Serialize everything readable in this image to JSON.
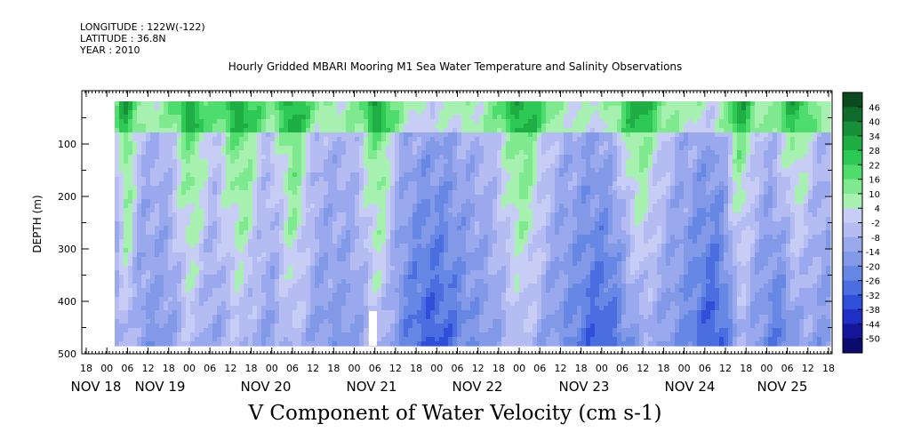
{
  "header": {
    "longitude": "LONGITUDE : 122W(-122)",
    "latitude": "LATITUDE : 36.8N",
    "year": "YEAR : 2010",
    "title": "Hourly Gridded MBARI Mooring M1 Sea Water Temperature and Salinity Observations"
  },
  "footer": {
    "variable_title": "V Component of Water Velocity (cm s-1)"
  },
  "chart_data": {
    "type": "heatmap",
    "title": "Hourly Gridded MBARI Mooring M1 Sea Water Temperature and Salinity Observations",
    "xlabel": "",
    "ylabel": "DEPTH (m)",
    "ylim": [
      500,
      0
    ],
    "y_ticks": [
      100,
      200,
      300,
      400,
      500
    ],
    "x_hour_ticks": [
      "18",
      "00",
      "06",
      "12",
      "18",
      "00",
      "06",
      "12",
      "18",
      "00",
      "06",
      "12",
      "18",
      "00",
      "06",
      "12",
      "18",
      "00",
      "06",
      "12",
      "18",
      "00",
      "06",
      "12",
      "18",
      "00",
      "06",
      "12",
      "18",
      "00",
      "06",
      "12",
      "18",
      "00",
      "06",
      "12",
      "18"
    ],
    "x_date_labels": [
      "NOV 18",
      "NOV 19",
      "NOV 20",
      "NOV 21",
      "NOV 22",
      "NOV 23",
      "NOV 24",
      "NOV 25"
    ],
    "colorbar": {
      "levels": [
        -50,
        -44,
        -38,
        -32,
        -26,
        -20,
        -14,
        -8,
        -2,
        4,
        10,
        16,
        22,
        28,
        34,
        40,
        46
      ],
      "labels": [
        "46",
        "40",
        "34",
        "28",
        "22",
        "16",
        "10",
        "4",
        "-2",
        "-8",
        "-14",
        "-20",
        "-26",
        "-32",
        "-38",
        "-44",
        "-50"
      ],
      "colors_low_to_high": [
        "#0b0b6e",
        "#15179a",
        "#1f2ec4",
        "#2f4fdb",
        "#4a6de0",
        "#6787e4",
        "#8299e8",
        "#9aa9ee",
        "#b4bcf2",
        "#c8cdf5",
        "#a6f0b0",
        "#7fe98f",
        "#4edc6c",
        "#2ec954",
        "#1fae44",
        "#178f38",
        "#0f6b2a",
        "#0a4a1d"
      ]
    },
    "time_range_hours": [
      0,
      192
    ],
    "series": [
      {
        "name": "V",
        "note": "field values in cm s-1; mostly between -20 and +22, positive (green) bands near surface and in vertical streaks, negative (blue) at depth"
      }
    ]
  }
}
